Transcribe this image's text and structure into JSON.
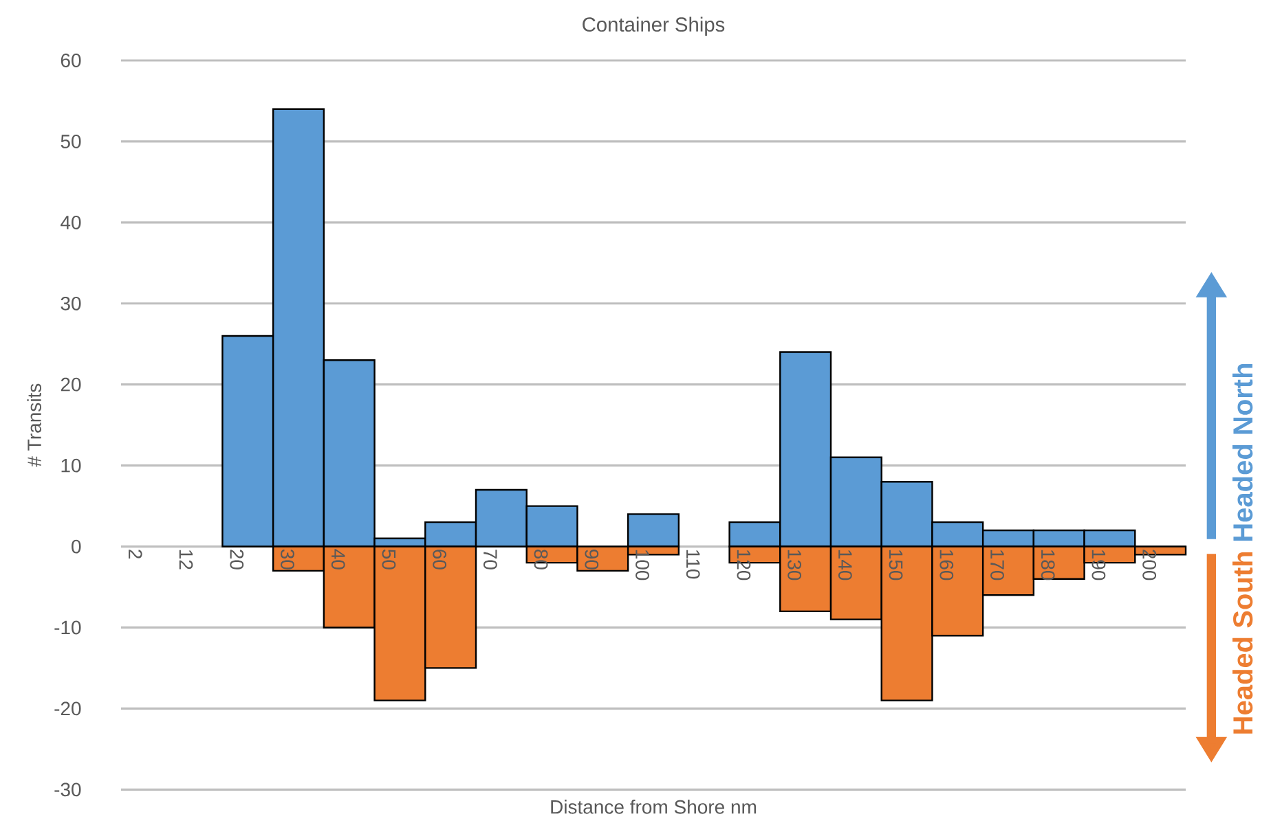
{
  "chart_data": {
    "type": "bar",
    "title": "Container Ships",
    "xlabel": "Distance from Shore nm",
    "ylabel": "# Transits",
    "categories": [
      "2",
      "12",
      "20",
      "30",
      "40",
      "50",
      "60",
      "70",
      "80",
      "90",
      "100",
      "110",
      "120",
      "130",
      "140",
      "150",
      "160",
      "170",
      "180",
      "190",
      "200"
    ],
    "series": [
      {
        "name": "Headed North",
        "color": "#5b9bd5",
        "values": [
          0,
          0,
          26,
          54,
          23,
          1,
          3,
          7,
          5,
          0,
          4,
          0,
          3,
          24,
          11,
          8,
          3,
          2,
          2,
          2,
          0
        ]
      },
      {
        "name": "Headed South",
        "color": "#ed7d31",
        "values": [
          0,
          0,
          0,
          -3,
          -10,
          -19,
          -15,
          0,
          -2,
          -3,
          -1,
          0,
          -2,
          -8,
          -9,
          -19,
          -11,
          -6,
          -4,
          -2,
          -1
        ]
      }
    ],
    "stacked": true,
    "ylim": [
      -30,
      60
    ],
    "yticks": [
      -30,
      -20,
      -10,
      0,
      10,
      20,
      30,
      40,
      50,
      60
    ],
    "grid": "y",
    "legend": "right"
  }
}
